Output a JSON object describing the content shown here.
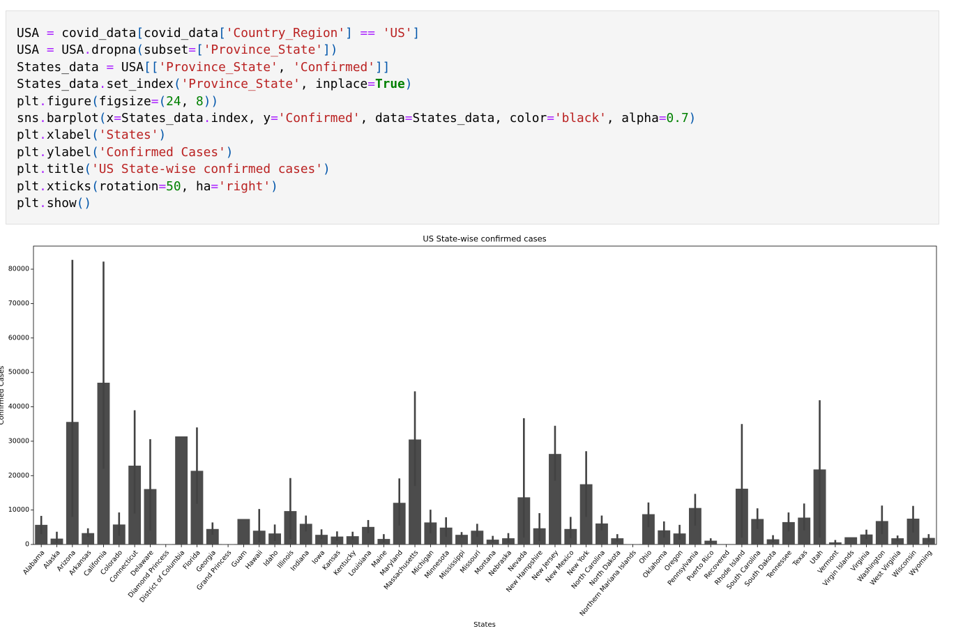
{
  "code": {
    "lines": [
      "USA = covid_data[covid_data['Country_Region'] == 'US']",
      "USA = USA.dropna(subset=['Province_State'])",
      "States_data = USA[['Province_State', 'Confirmed']]",
      "States_data.set_index('Province_State', inplace=True)",
      "plt.figure(figsize=(24, 8))",
      "sns.barplot(x=States_data.index, y='Confirmed', data=States_data, color='black', alpha=0.7)",
      "plt.xlabel('States')",
      "plt.ylabel('Confirmed Cases')",
      "plt.title('US State-wise confirmed cases')",
      "plt.xticks(rotation=50, ha='right')",
      "plt.show()"
    ]
  },
  "chart_data": {
    "type": "bar",
    "title": "US State-wise confirmed cases",
    "xlabel": "States",
    "ylabel": "Confirmed Cases",
    "categories": [
      "Alabama",
      "Alaska",
      "Arizona",
      "Arkansas",
      "California",
      "Colorado",
      "Connecticut",
      "Delaware",
      "Diamond Princess",
      "District of Columbia",
      "Florida",
      "Georgia",
      "Grand Princess",
      "Guam",
      "Hawaii",
      "Idaho",
      "Illinois",
      "Indiana",
      "Iowa",
      "Kansas",
      "Kentucky",
      "Louisiana",
      "Maine",
      "Maryland",
      "Massachusetts",
      "Michigan",
      "Minnesota",
      "Mississippi",
      "Missouri",
      "Montana",
      "Nebraska",
      "Nevada",
      "New Hampshire",
      "New Jersey",
      "New Mexico",
      "New York",
      "North Carolina",
      "North Dakota",
      "Northern Mariana Islands",
      "Ohio",
      "Oklahoma",
      "Oregon",
      "Pennsylvania",
      "Puerto Rico",
      "Recovered",
      "Rhode Island",
      "South Carolina",
      "South Dakota",
      "Tennessee",
      "Texas",
      "Utah",
      "Vermont",
      "Virgin Islands",
      "Virginia",
      "Washington",
      "West Virginia",
      "Wisconsin",
      "Wyoming"
    ],
    "values": [
      5700,
      1700,
      35600,
      3300,
      47000,
      5800,
      22900,
      16100,
      100,
      31400,
      21400,
      4500,
      100,
      7400,
      4000,
      3200,
      9700,
      6000,
      2800,
      2300,
      2400,
      5100,
      1600,
      12100,
      30500,
      6400,
      4900,
      2800,
      4000,
      1400,
      1800,
      13700,
      4700,
      26300,
      4500,
      17500,
      6100,
      1800,
      100,
      8800,
      4100,
      3200,
      10600,
      1100,
      0,
      16200,
      7400,
      1500,
      6500,
      7800,
      21800,
      600,
      2100,
      2900,
      6800,
      1800,
      7500,
      1900
    ],
    "err_low": [
      3000,
      300,
      8000,
      2200,
      22000,
      2500,
      9000,
      4000,
      100,
      31400,
      11800,
      2800,
      100,
      7400,
      600,
      1000,
      1500,
      3800,
      1500,
      1100,
      1400,
      3300,
      600,
      5500,
      17000,
      3200,
      2200,
      2000,
      2200,
      600,
      500,
      2000,
      1000,
      18500,
      1800,
      8000,
      4100,
      800,
      100,
      5000,
      2000,
      1400,
      5500,
      400,
      0,
      2000,
      4500,
      600,
      3800,
      4100,
      2000,
      100,
      2100,
      1500,
      3000,
      900,
      3500,
      800
    ],
    "err_high": [
      8300,
      3700,
      82700,
      4700,
      82200,
      9300,
      39000,
      30600,
      100,
      31400,
      34000,
      6400,
      100,
      7400,
      10300,
      5800,
      19300,
      8400,
      4400,
      3800,
      3700,
      7100,
      3000,
      19200,
      44500,
      10100,
      7900,
      3600,
      6000,
      2500,
      3300,
      36700,
      9100,
      34500,
      8000,
      27100,
      8400,
      3000,
      100,
      12200,
      6700,
      5700,
      14700,
      1800,
      0,
      35000,
      10500,
      2700,
      9300,
      11900,
      41900,
      1300,
      2100,
      4300,
      11300,
      2600,
      11200,
      3000
    ],
    "color": "#4c4c4c",
    "err_color": "#424242",
    "ylim": [
      0,
      86700
    ],
    "yticks": [
      0,
      10000,
      20000,
      30000,
      40000,
      50000,
      60000,
      70000,
      80000
    ]
  }
}
